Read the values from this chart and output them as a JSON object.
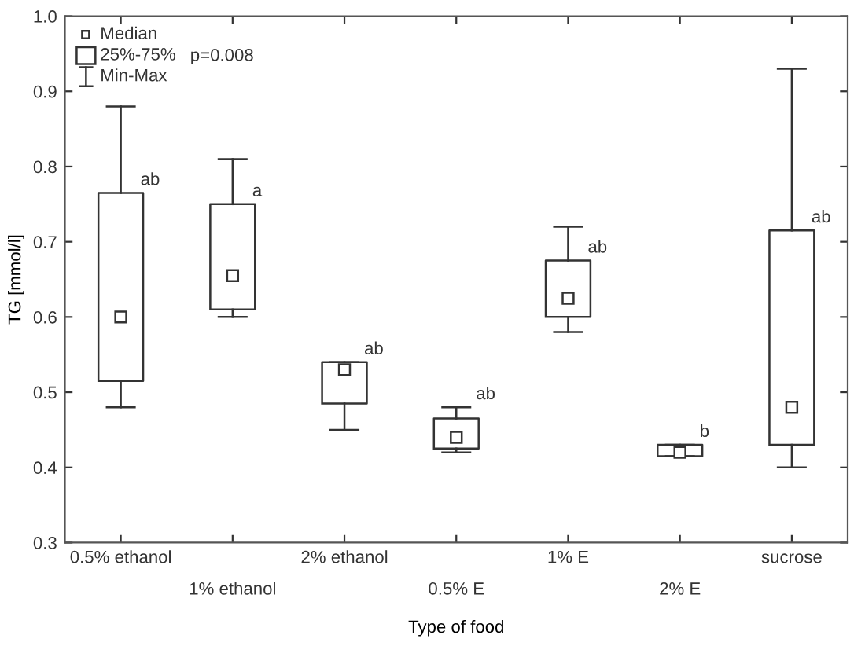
{
  "chart_data": {
    "type": "box",
    "xlabel": "Type of food",
    "ylabel": "TG [mmol/l]",
    "categories": [
      "0.5% ethanol",
      "1% ethanol",
      "2% ethanol",
      "0.5% E",
      "1% E",
      "2% E",
      "sucrose"
    ],
    "boxes": [
      {
        "low": 0.48,
        "q1": 0.515,
        "median": 0.6,
        "q3": 0.765,
        "high": 0.88
      },
      {
        "low": 0.6,
        "q1": 0.61,
        "median": 0.655,
        "q3": 0.75,
        "high": 0.81
      },
      {
        "low": 0.45,
        "q1": 0.485,
        "median": 0.53,
        "q3": 0.54,
        "high": 0.54
      },
      {
        "low": 0.42,
        "q1": 0.425,
        "median": 0.44,
        "q3": 0.465,
        "high": 0.48
      },
      {
        "low": 0.58,
        "q1": 0.6,
        "median": 0.625,
        "q3": 0.675,
        "high": 0.72
      },
      {
        "low": 0.415,
        "q1": 0.415,
        "median": 0.42,
        "q3": 0.43,
        "high": 0.43
      },
      {
        "low": 0.4,
        "q1": 0.43,
        "median": 0.48,
        "q3": 0.715,
        "high": 0.93
      }
    ],
    "ylim": [
      0.3,
      1.0
    ],
    "yticks": [
      0.3,
      0.4,
      0.5,
      0.6,
      0.7,
      0.8,
      0.9,
      {
        "value": 1.0,
        "label": "1.0"
      }
    ],
    "grid": false,
    "annotations": [
      "Median",
      "25%-75%",
      "Min-Max",
      "p=0.008",
      {
        "text": "ab",
        "x": "0.5% ethanol",
        "y": 0.765
      },
      {
        "text": "a",
        "x": "1% ethanol",
        "y": 0.75
      },
      {
        "text": "ab",
        "x": "2% ethanol",
        "y": 0.54
      },
      {
        "text": "ab",
        "x": "0.5% E",
        "y": 0.48
      },
      {
        "text": "ab",
        "x": "1% E",
        "y": 0.675
      },
      {
        "text": "b",
        "x": "2% E",
        "y": 0.43
      },
      {
        "text": "ab",
        "x": "sucrose",
        "y": 0.715
      }
    ]
  }
}
